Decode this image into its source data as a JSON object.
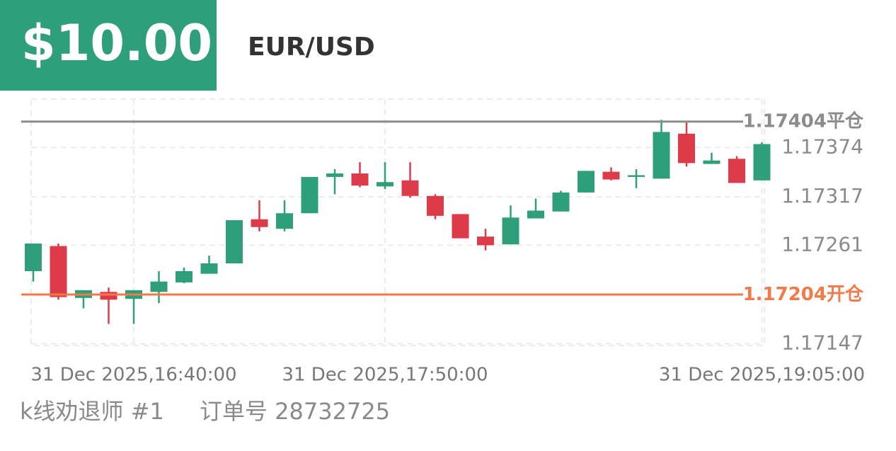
{
  "header": {
    "amount": "$10.00",
    "symbol": "EUR/USD"
  },
  "chart_data": {
    "type": "candlestick",
    "categories": [
      null,
      null,
      null,
      null,
      "31 Dec 2025,16:40:00",
      null,
      null,
      null,
      null,
      null,
      null,
      null,
      null,
      null,
      "31 Dec 2025,17:50:00",
      null,
      null,
      null,
      null,
      null,
      null,
      null,
      null,
      null,
      null,
      null,
      null,
      null,
      null,
      "31 Dec 2025,19:05:00"
    ],
    "candles": [
      {
        "open": 1.17231,
        "high": 1.17263,
        "low": 1.17219,
        "close": 1.17263
      },
      {
        "open": 1.1726,
        "high": 1.17263,
        "low": 1.17198,
        "close": 1.17201
      },
      {
        "open": 1.172,
        "high": 1.17209,
        "low": 1.17188,
        "close": 1.17209
      },
      {
        "open": 1.17207,
        "high": 1.17212,
        "low": 1.1717,
        "close": 1.17198
      },
      {
        "open": 1.17199,
        "high": 1.17209,
        "low": 1.1717,
        "close": 1.17209
      },
      {
        "open": 1.17207,
        "high": 1.17231,
        "low": 1.17194,
        "close": 1.17219
      },
      {
        "open": 1.17218,
        "high": 1.17235,
        "low": 1.17217,
        "close": 1.17231
      },
      {
        "open": 1.17228,
        "high": 1.17249,
        "low": 1.17228,
        "close": 1.1724
      },
      {
        "open": 1.1724,
        "high": 1.1729,
        "low": 1.1724,
        "close": 1.1729
      },
      {
        "open": 1.17291,
        "high": 1.17313,
        "low": 1.17277,
        "close": 1.17282
      },
      {
        "open": 1.1728,
        "high": 1.17313,
        "low": 1.17277,
        "close": 1.17298
      },
      {
        "open": 1.17298,
        "high": 1.1734,
        "low": 1.17298,
        "close": 1.1734
      },
      {
        "open": 1.1734,
        "high": 1.17349,
        "low": 1.1732,
        "close": 1.17344
      },
      {
        "open": 1.17344,
        "high": 1.17357,
        "low": 1.17328,
        "close": 1.1733
      },
      {
        "open": 1.17329,
        "high": 1.17357,
        "low": 1.17326,
        "close": 1.17334
      },
      {
        "open": 1.17336,
        "high": 1.17357,
        "low": 1.17316,
        "close": 1.17318
      },
      {
        "open": 1.17318,
        "high": 1.1732,
        "low": 1.17291,
        "close": 1.17295
      },
      {
        "open": 1.17297,
        "high": 1.17297,
        "low": 1.17269,
        "close": 1.17269
      },
      {
        "open": 1.17271,
        "high": 1.1728,
        "low": 1.17255,
        "close": 1.17261
      },
      {
        "open": 1.17262,
        "high": 1.17307,
        "low": 1.17262,
        "close": 1.17293
      },
      {
        "open": 1.17292,
        "high": 1.17315,
        "low": 1.17292,
        "close": 1.17301
      },
      {
        "open": 1.173,
        "high": 1.17324,
        "low": 1.173,
        "close": 1.17322
      },
      {
        "open": 1.17322,
        "high": 1.17347,
        "low": 1.17322,
        "close": 1.17347
      },
      {
        "open": 1.17346,
        "high": 1.17351,
        "low": 1.17336,
        "close": 1.17337
      },
      {
        "open": 1.1734,
        "high": 1.17349,
        "low": 1.17327,
        "close": 1.17342
      },
      {
        "open": 1.17338,
        "high": 1.17406,
        "low": 1.17338,
        "close": 1.17392
      },
      {
        "open": 1.1739,
        "high": 1.17404,
        "low": 1.17352,
        "close": 1.17356
      },
      {
        "open": 1.17355,
        "high": 1.17368,
        "low": 1.17355,
        "close": 1.17359
      },
      {
        "open": 1.17361,
        "high": 1.17364,
        "low": 1.17333,
        "close": 1.17333
      },
      {
        "open": 1.17336,
        "high": 1.1738,
        "low": 1.17336,
        "close": 1.17378
      }
    ],
    "up_color": "#2e9f7a",
    "down_color": "#de3b4a",
    "ylim": [
      1.17145,
      1.1743
    ],
    "yticks": [
      1.17147,
      1.17261,
      1.17317,
      1.17374
    ],
    "grid": true,
    "lines": [
      {
        "value": 1.17404,
        "label": "平仓",
        "color": "#8c8c8c"
      },
      {
        "value": 1.17204,
        "label": "开仓",
        "color": "#f07a4a"
      }
    ]
  },
  "footer": {
    "account": "k线劝退师 #1",
    "order": "订单号 28732725"
  }
}
